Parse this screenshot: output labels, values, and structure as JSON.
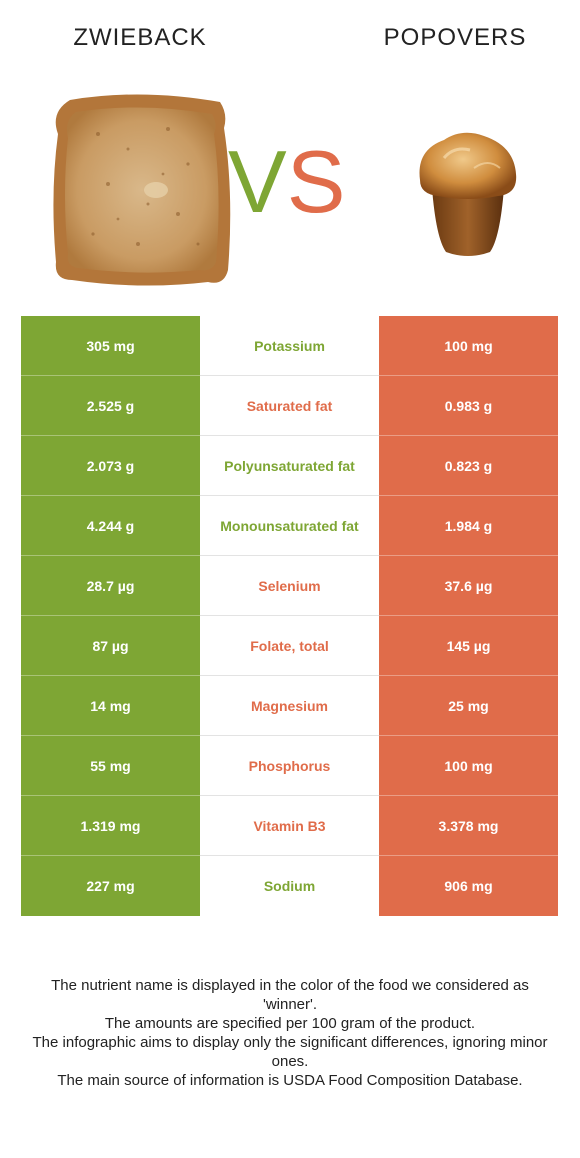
{
  "header": {
    "left_food": "ZWIEBACK",
    "right_food": "POPOVERS",
    "vs_v": "V",
    "vs_s": "S"
  },
  "colors": {
    "left_accent": "#7ea634",
    "right_accent": "#e06c4a"
  },
  "rows": [
    {
      "nutrient": "Potassium",
      "left": "305 mg",
      "right": "100 mg",
      "winner": "left"
    },
    {
      "nutrient": "Saturated fat",
      "left": "2.525 g",
      "right": "0.983 g",
      "winner": "right"
    },
    {
      "nutrient": "Polyunsaturated fat",
      "left": "2.073 g",
      "right": "0.823 g",
      "winner": "left"
    },
    {
      "nutrient": "Monounsaturated fat",
      "left": "4.244 g",
      "right": "1.984 g",
      "winner": "left"
    },
    {
      "nutrient": "Selenium",
      "left": "28.7 µg",
      "right": "37.6 µg",
      "winner": "right"
    },
    {
      "nutrient": "Folate, total",
      "left": "87 µg",
      "right": "145 µg",
      "winner": "right"
    },
    {
      "nutrient": "Magnesium",
      "left": "14 mg",
      "right": "25 mg",
      "winner": "right"
    },
    {
      "nutrient": "Phosphorus",
      "left": "55 mg",
      "right": "100 mg",
      "winner": "right"
    },
    {
      "nutrient": "Vitamin B3",
      "left": "1.319 mg",
      "right": "3.378 mg",
      "winner": "right"
    },
    {
      "nutrient": "Sodium",
      "left": "227 mg",
      "right": "906 mg",
      "winner": "left"
    }
  ],
  "footer": {
    "line1": "The nutrient name is displayed in the color of the food we considered as 'winner'.",
    "line2": "The amounts are specified per 100 gram of the product.",
    "line3": "The infographic aims to display only the significant differences, ignoring minor ones.",
    "line4": "The main source of information is USDA Food Composition Database."
  }
}
